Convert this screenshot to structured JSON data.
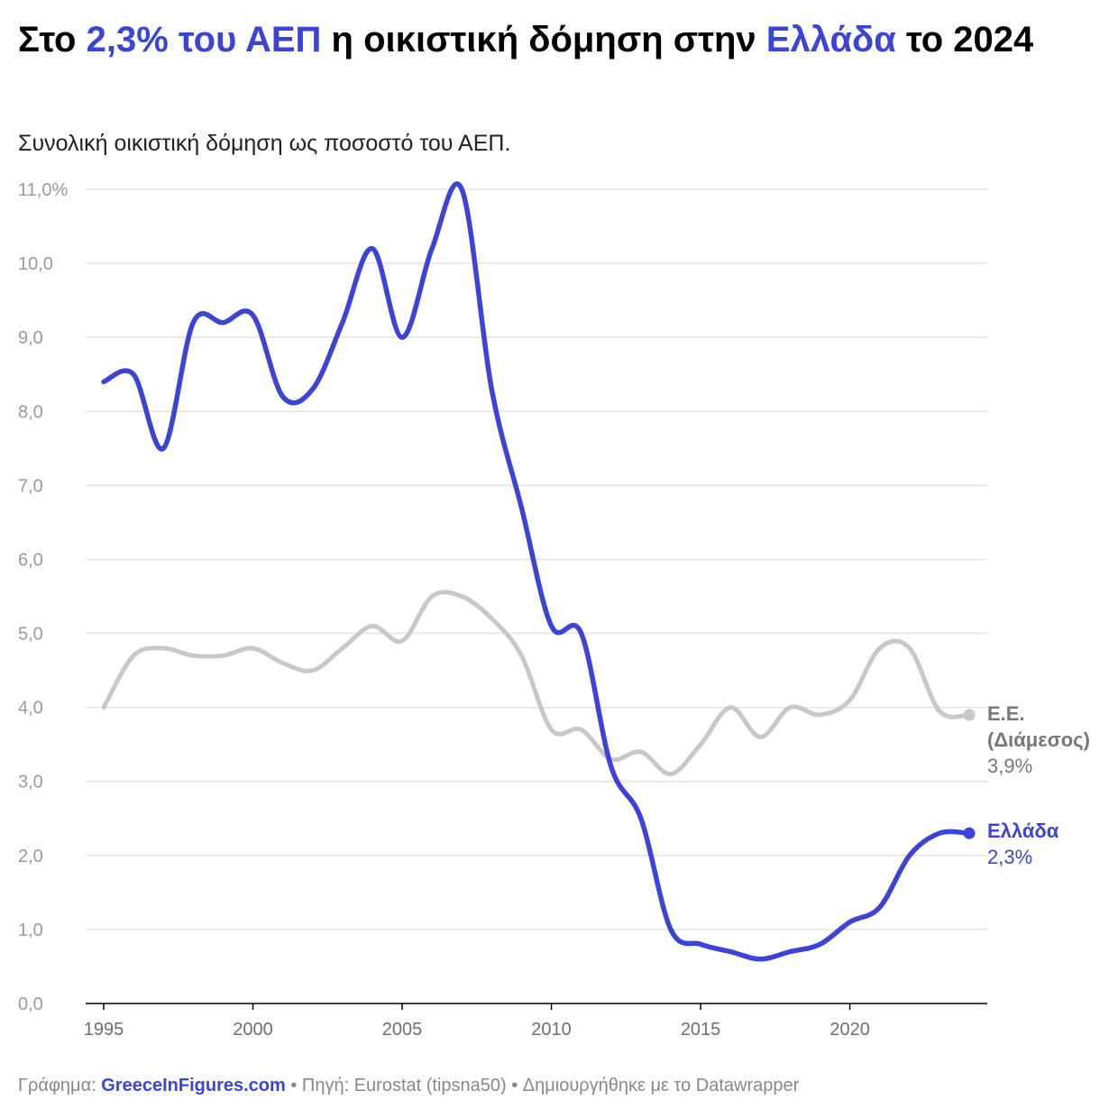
{
  "header": {
    "title_pre": "Στο ",
    "title_hl1": "2,3% του ΑΕΠ",
    "title_mid": " η οικιστική δόμηση στην ",
    "title_hl2": "Ελλάδα",
    "title_post": " το 2024",
    "subtitle": "Συνολική οικιστική δόμηση ως ποσοστό του ΑΕΠ."
  },
  "footer": {
    "prefix": "Γράφημα: ",
    "brand": "GreeceInFigures.com",
    "rest": " • Πηγή: Eurostat (tipsna50) • Δημιουργήθηκε με το Datawrapper"
  },
  "colors": {
    "greece": "#3a44d8",
    "eu": "#c8c8c8",
    "grid": "#e3e3e3",
    "axis": "#000000"
  },
  "chart_data": {
    "type": "line",
    "title": "Στο 2,3% του ΑΕΠ η οικιστική δόμηση στην Ελλάδα το 2024",
    "subtitle": "Συνολική οικιστική δόμηση ως ποσοστό του ΑΕΠ.",
    "xlabel": "",
    "ylabel": "",
    "xlim": [
      1995,
      2024
    ],
    "ylim": [
      0,
      11
    ],
    "grid": true,
    "y_ticks": [
      {
        "value": 0,
        "label": "0,0"
      },
      {
        "value": 1,
        "label": "1,0"
      },
      {
        "value": 2,
        "label": "2,0"
      },
      {
        "value": 3,
        "label": "3,0"
      },
      {
        "value": 4,
        "label": "4,0"
      },
      {
        "value": 5,
        "label": "5,0"
      },
      {
        "value": 6,
        "label": "6,0"
      },
      {
        "value": 7,
        "label": "7,0"
      },
      {
        "value": 8,
        "label": "8,0"
      },
      {
        "value": 9,
        "label": "9,0"
      },
      {
        "value": 10,
        "label": "10,0"
      },
      {
        "value": 11,
        "label": "11,0%"
      }
    ],
    "x_ticks": [
      1995,
      2000,
      2005,
      2010,
      2015,
      2020
    ],
    "x": [
      1995,
      1996,
      1997,
      1998,
      1999,
      2000,
      2001,
      2002,
      2003,
      2004,
      2005,
      2006,
      2007,
      2008,
      2009,
      2010,
      2011,
      2012,
      2013,
      2014,
      2015,
      2016,
      2017,
      2018,
      2019,
      2020,
      2021,
      2022,
      2023,
      2024
    ],
    "series": [
      {
        "name": "Ε.Ε. (Διάμεσος)",
        "label_lines": [
          "Ε.Ε.",
          "(Διάμεσος)"
        ],
        "end_label": "3,9%",
        "color": "#c8c8c8",
        "values": [
          4.0,
          4.7,
          4.8,
          4.7,
          4.7,
          4.8,
          4.6,
          4.5,
          4.8,
          5.1,
          4.9,
          5.5,
          5.5,
          5.2,
          4.7,
          3.7,
          3.7,
          3.3,
          3.4,
          3.1,
          3.5,
          4.0,
          3.6,
          4.0,
          3.9,
          4.1,
          4.8,
          4.8,
          3.95,
          3.9
        ]
      },
      {
        "name": "Ελλάδα",
        "label_lines": [
          "Ελλάδα"
        ],
        "end_label": "2,3%",
        "color": "#3a44d8",
        "values": [
          8.4,
          8.5,
          7.5,
          9.2,
          9.2,
          9.3,
          8.2,
          8.3,
          9.2,
          10.2,
          9.0,
          10.2,
          11.0,
          8.3,
          6.7,
          5.1,
          5.0,
          3.2,
          2.5,
          1.0,
          0.8,
          0.7,
          0.6,
          0.7,
          0.8,
          1.1,
          1.3,
          2.0,
          2.3,
          2.3
        ]
      }
    ]
  }
}
